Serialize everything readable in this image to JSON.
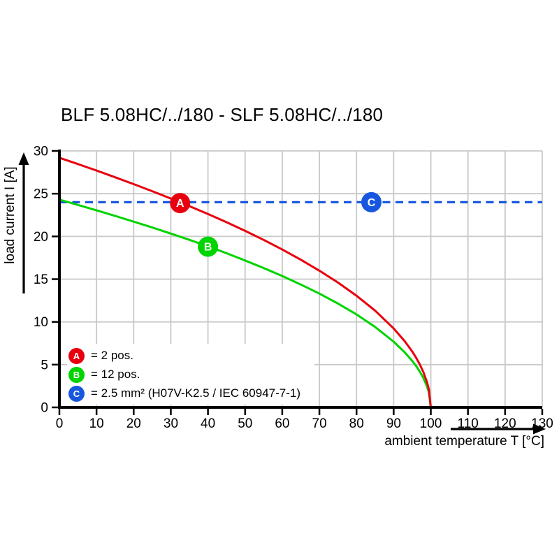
{
  "title": "BLF 5.08HC/../180 - SLF 5.08HC/../180",
  "chart_data": {
    "type": "line",
    "title": "BLF 5.08HC/../180 - SLF 5.08HC/../180",
    "xlabel": "ambient temperature T [°C]",
    "ylabel": "load current I [A]",
    "xlim": [
      0,
      130
    ],
    "ylim": [
      0,
      30
    ],
    "x_ticks": [
      0,
      10,
      20,
      30,
      40,
      50,
      60,
      70,
      80,
      90,
      100,
      110,
      120,
      130
    ],
    "y_ticks": [
      0,
      5,
      10,
      15,
      20,
      25,
      30
    ],
    "grid": true,
    "legend_position": "bottom-left",
    "colors": {
      "grid": "#c9c9c9",
      "axis": "#000000",
      "series_a_red": "#e8000e",
      "series_b_green": "#00d400",
      "series_c_blue": "#1757e0"
    },
    "series": [
      {
        "key": "A",
        "legend_label": "= 2 pos.",
        "color": "#e8000e",
        "style": "solid",
        "points": [
          [
            0,
            29.2
          ],
          [
            5,
            28.46
          ],
          [
            10,
            27.7
          ],
          [
            15,
            26.92
          ],
          [
            20,
            26.12
          ],
          [
            25,
            25.29
          ],
          [
            30,
            24.43
          ],
          [
            35,
            23.54
          ],
          [
            40,
            22.62
          ],
          [
            45,
            21.66
          ],
          [
            50,
            20.65
          ],
          [
            55,
            19.59
          ],
          [
            60,
            18.47
          ],
          [
            65,
            17.27
          ],
          [
            70,
            15.99
          ],
          [
            75,
            14.6
          ],
          [
            80,
            13.06
          ],
          [
            85,
            11.31
          ],
          [
            90,
            9.23
          ],
          [
            93,
            7.73
          ],
          [
            95,
            6.53
          ],
          [
            96,
            5.84
          ],
          [
            97,
            5.06
          ],
          [
            98,
            4.13
          ],
          [
            99,
            2.92
          ],
          [
            99.5,
            2.06
          ],
          [
            100,
            0
          ]
        ]
      },
      {
        "key": "B",
        "legend_label": "= 12 pos.",
        "color": "#00d400",
        "style": "solid",
        "points": [
          [
            0,
            24.3
          ],
          [
            5,
            23.68
          ],
          [
            10,
            23.05
          ],
          [
            15,
            22.4
          ],
          [
            20,
            21.73
          ],
          [
            25,
            21.04
          ],
          [
            30,
            20.33
          ],
          [
            35,
            19.6
          ],
          [
            40,
            18.83
          ],
          [
            45,
            18.03
          ],
          [
            50,
            17.18
          ],
          [
            55,
            16.3
          ],
          [
            60,
            15.37
          ],
          [
            65,
            14.37
          ],
          [
            70,
            13.31
          ],
          [
            75,
            12.15
          ],
          [
            80,
            10.87
          ],
          [
            85,
            9.41
          ],
          [
            90,
            7.68
          ],
          [
            93,
            6.43
          ],
          [
            95,
            5.43
          ],
          [
            96,
            4.86
          ],
          [
            97,
            4.21
          ],
          [
            98,
            3.44
          ],
          [
            99,
            2.43
          ],
          [
            99.5,
            1.72
          ],
          [
            100,
            0
          ]
        ]
      },
      {
        "key": "C",
        "legend_label": "= 2.5 mm² (H07V-K2.5 / IEC 60947-7-1)",
        "color": "#1757e0",
        "style": "dashed",
        "points": [
          [
            0,
            24
          ],
          [
            130,
            24
          ]
        ]
      }
    ],
    "markers": [
      {
        "letter": "A",
        "x": 32.5,
        "y": 23.9,
        "color": "#e8000e"
      },
      {
        "letter": "B",
        "x": 40,
        "y": 18.8,
        "color": "#00d400"
      },
      {
        "letter": "C",
        "x": 84,
        "y": 24,
        "color": "#1757e0"
      }
    ]
  }
}
